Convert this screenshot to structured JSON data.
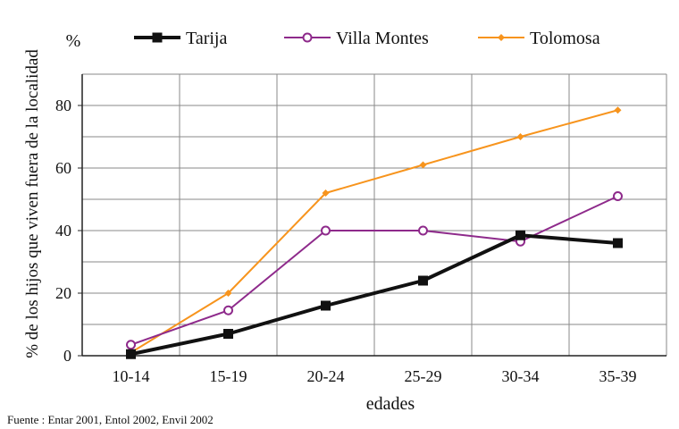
{
  "chart_data": {
    "type": "line",
    "title": "",
    "xlabel": "edades",
    "ylabel": "% de los hijos que viven fuera de la localidad",
    "y_unit": "%",
    "categories": [
      "10-14",
      "15-19",
      "20-24",
      "25-29",
      "30-34",
      "35-39"
    ],
    "ylim": [
      0,
      90
    ],
    "yticks": [
      0,
      20,
      40,
      60,
      80
    ],
    "grid": true,
    "legend_position": "top",
    "series": [
      {
        "name": "Tarija",
        "color": "#111111",
        "marker": "square",
        "values": [
          0.5,
          7,
          16,
          24,
          38.5,
          36
        ]
      },
      {
        "name": "Villa Montes",
        "color": "#8e2a8b",
        "marker": "circle",
        "values": [
          3.5,
          14.5,
          40,
          40,
          36.5,
          51
        ]
      },
      {
        "name": "Tolomosa",
        "color": "#f7941d",
        "marker": "diamond",
        "values": [
          1,
          20,
          52,
          61,
          70,
          78.5
        ]
      }
    ],
    "source": "Fuente : Entar 2001, Entol 2002, Envil 2002"
  }
}
